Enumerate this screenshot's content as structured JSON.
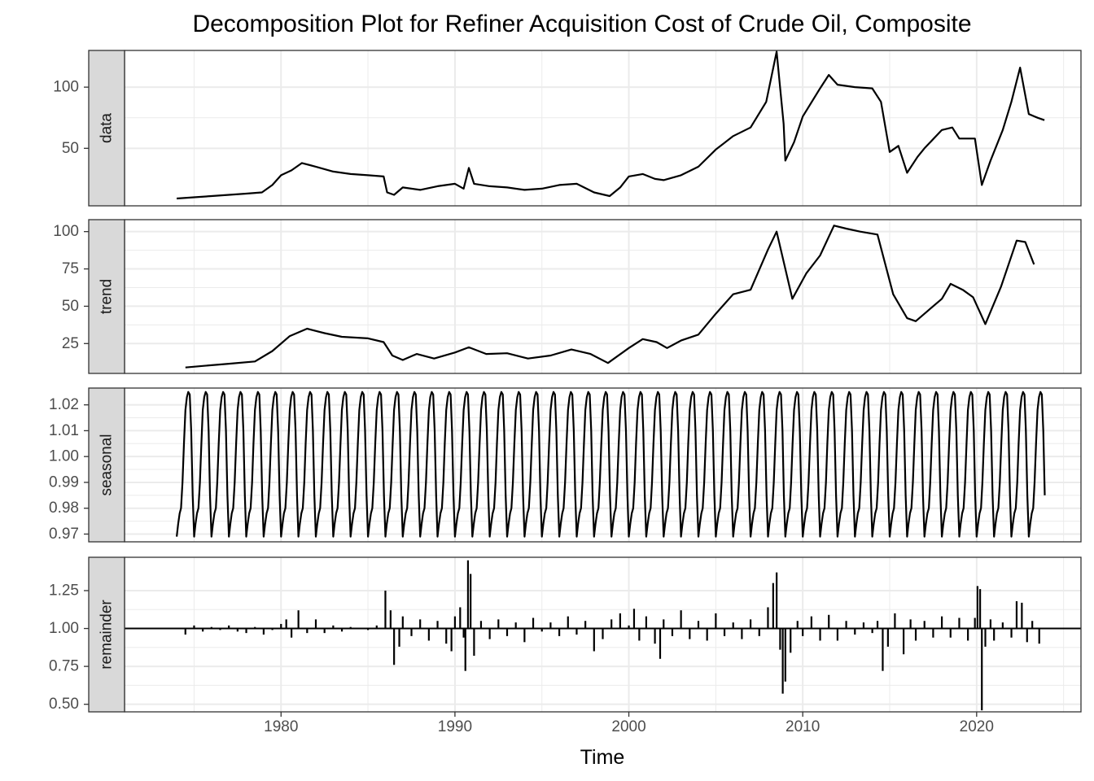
{
  "chart_data": {
    "type": "line",
    "title": "Decomposition Plot for Refiner Acquisition Cost of Crude Oil, Composite",
    "xlabel": "Time",
    "x_range": [
      1971,
      2026
    ],
    "x_ticks": [
      1980,
      1990,
      2000,
      2010,
      2020
    ],
    "grid": true,
    "legend": "none",
    "colors": {
      "line": "#000000",
      "strip_fill": "#d9d9d9",
      "grid": "#ebebeb",
      "panel_border": "#333333"
    },
    "panels": [
      {
        "label": "data",
        "kind": "line",
        "ylim": [
          3,
          130
        ],
        "y_ticks": [
          50,
          100
        ],
        "y_tick_labels": [
          "50",
          "100"
        ],
        "points": [
          [
            1974.0,
            9
          ],
          [
            1975.0,
            10
          ],
          [
            1976.0,
            11
          ],
          [
            1977.0,
            12
          ],
          [
            1978.0,
            13
          ],
          [
            1978.9,
            14
          ],
          [
            1979.5,
            20
          ],
          [
            1980.0,
            28
          ],
          [
            1980.6,
            32
          ],
          [
            1981.2,
            38
          ],
          [
            1982.0,
            35
          ],
          [
            1983.0,
            31
          ],
          [
            1984.0,
            29
          ],
          [
            1985.0,
            28
          ],
          [
            1985.9,
            27
          ],
          [
            1986.1,
            14
          ],
          [
            1986.5,
            12
          ],
          [
            1987.0,
            18
          ],
          [
            1988.0,
            16
          ],
          [
            1989.0,
            19
          ],
          [
            1990.0,
            21
          ],
          [
            1990.5,
            17
          ],
          [
            1990.8,
            34
          ],
          [
            1991.1,
            21
          ],
          [
            1992.0,
            19
          ],
          [
            1993.0,
            18
          ],
          [
            1994.0,
            16
          ],
          [
            1995.0,
            17
          ],
          [
            1996.0,
            20
          ],
          [
            1997.0,
            21
          ],
          [
            1998.0,
            14
          ],
          [
            1998.9,
            11
          ],
          [
            1999.5,
            18
          ],
          [
            2000.0,
            27
          ],
          [
            2000.8,
            29
          ],
          [
            2001.5,
            25
          ],
          [
            2002.0,
            24
          ],
          [
            2003.0,
            28
          ],
          [
            2004.0,
            35
          ],
          [
            2005.0,
            49
          ],
          [
            2006.0,
            60
          ],
          [
            2007.0,
            67
          ],
          [
            2007.9,
            88
          ],
          [
            2008.5,
            129
          ],
          [
            2008.9,
            70
          ],
          [
            2009.0,
            40
          ],
          [
            2009.5,
            55
          ],
          [
            2010.0,
            76
          ],
          [
            2011.0,
            99
          ],
          [
            2011.5,
            110
          ],
          [
            2012.0,
            102
          ],
          [
            2013.0,
            100
          ],
          [
            2014.0,
            99
          ],
          [
            2014.5,
            88
          ],
          [
            2015.0,
            47
          ],
          [
            2015.5,
            52
          ],
          [
            2016.0,
            30
          ],
          [
            2016.6,
            43
          ],
          [
            2017.0,
            50
          ],
          [
            2018.0,
            65
          ],
          [
            2018.6,
            67
          ],
          [
            2019.0,
            58
          ],
          [
            2019.9,
            58
          ],
          [
            2020.3,
            20
          ],
          [
            2020.8,
            40
          ],
          [
            2021.5,
            65
          ],
          [
            2022.0,
            88
          ],
          [
            2022.5,
            116
          ],
          [
            2023.0,
            78
          ],
          [
            2023.5,
            75
          ],
          [
            2023.9,
            73
          ]
        ]
      },
      {
        "label": "trend",
        "kind": "line",
        "ylim": [
          5,
          108
        ],
        "y_ticks": [
          25,
          50,
          75,
          100
        ],
        "y_tick_labels": [
          "25",
          "50",
          "75",
          "100"
        ],
        "points": [
          [
            1974.5,
            9
          ],
          [
            1975.5,
            10
          ],
          [
            1977.0,
            11.5
          ],
          [
            1978.5,
            13
          ],
          [
            1979.5,
            20
          ],
          [
            1980.5,
            30
          ],
          [
            1981.5,
            35
          ],
          [
            1982.5,
            32
          ],
          [
            1983.5,
            29.5
          ],
          [
            1985.0,
            28.5
          ],
          [
            1985.9,
            26
          ],
          [
            1986.4,
            17
          ],
          [
            1987.0,
            14
          ],
          [
            1987.8,
            18
          ],
          [
            1988.8,
            15
          ],
          [
            1990.0,
            19
          ],
          [
            1990.8,
            22.5
          ],
          [
            1991.8,
            18
          ],
          [
            1993.0,
            18.5
          ],
          [
            1994.2,
            15
          ],
          [
            1995.5,
            17
          ],
          [
            1996.7,
            21
          ],
          [
            1997.8,
            18
          ],
          [
            1998.8,
            12
          ],
          [
            2000.0,
            22
          ],
          [
            2000.8,
            28
          ],
          [
            2001.6,
            26
          ],
          [
            2002.2,
            22
          ],
          [
            2003.0,
            27
          ],
          [
            2004.0,
            31
          ],
          [
            2005.0,
            45
          ],
          [
            2006.0,
            58
          ],
          [
            2007.0,
            61
          ],
          [
            2008.0,
            88
          ],
          [
            2008.5,
            100
          ],
          [
            2009.4,
            55
          ],
          [
            2010.2,
            72
          ],
          [
            2011.0,
            84
          ],
          [
            2011.8,
            104
          ],
          [
            2012.5,
            102
          ],
          [
            2013.3,
            100
          ],
          [
            2014.3,
            98
          ],
          [
            2015.2,
            58
          ],
          [
            2016.0,
            42
          ],
          [
            2016.5,
            40
          ],
          [
            2017.2,
            47
          ],
          [
            2018.0,
            55
          ],
          [
            2018.5,
            65
          ],
          [
            2019.2,
            61
          ],
          [
            2019.8,
            56
          ],
          [
            2020.5,
            38
          ],
          [
            2021.4,
            63
          ],
          [
            2022.3,
            94
          ],
          [
            2022.8,
            93
          ],
          [
            2023.3,
            78
          ]
        ]
      },
      {
        "label": "seasonal",
        "kind": "seasonal",
        "ylim": [
          0.967,
          1.0265
        ],
        "y_ticks": [
          0.97,
          0.98,
          0.99,
          1.0,
          1.01,
          1.02
        ],
        "y_tick_labels": [
          "0.97",
          "0.98",
          "0.99",
          "1.00",
          "1.01",
          "1.02"
        ],
        "start": 1974.0,
        "end": 2023.9,
        "pattern": [
          0.969,
          0.974,
          0.978,
          0.98,
          0.99,
          1.005,
          1.018,
          1.023,
          1.025,
          1.024,
          1.01,
          0.985
        ]
      },
      {
        "label": "remainder",
        "kind": "bars",
        "baseline": 1.0,
        "ylim": [
          0.45,
          1.47
        ],
        "y_ticks": [
          0.5,
          0.75,
          1.0,
          1.25
        ],
        "y_tick_labels": [
          "0.50",
          "0.75",
          "1.00",
          "1.25"
        ],
        "bars": [
          [
            1974.5,
            0.96
          ],
          [
            1975.0,
            1.02
          ],
          [
            1975.5,
            0.98
          ],
          [
            1976.0,
            1.01
          ],
          [
            1976.5,
            0.99
          ],
          [
            1977.0,
            1.02
          ],
          [
            1977.5,
            0.98
          ],
          [
            1978.0,
            0.97
          ],
          [
            1978.5,
            1.01
          ],
          [
            1979.0,
            0.96
          ],
          [
            1979.5,
            0.99
          ],
          [
            1980.0,
            1.03
          ],
          [
            1980.3,
            1.06
          ],
          [
            1980.6,
            0.94
          ],
          [
            1981.0,
            1.12
          ],
          [
            1981.5,
            0.97
          ],
          [
            1982.0,
            1.06
          ],
          [
            1982.5,
            0.97
          ],
          [
            1983.0,
            1.02
          ],
          [
            1983.5,
            0.98
          ],
          [
            1984.0,
            1.01
          ],
          [
            1984.5,
            1.0
          ],
          [
            1985.0,
            0.99
          ],
          [
            1985.5,
            1.02
          ],
          [
            1986.0,
            1.25
          ],
          [
            1986.3,
            1.12
          ],
          [
            1986.5,
            0.76
          ],
          [
            1986.8,
            0.88
          ],
          [
            1987.0,
            1.08
          ],
          [
            1987.5,
            0.95
          ],
          [
            1988.0,
            1.06
          ],
          [
            1988.5,
            0.92
          ],
          [
            1989.0,
            1.05
          ],
          [
            1989.5,
            0.9
          ],
          [
            1989.8,
            0.85
          ],
          [
            1990.0,
            1.08
          ],
          [
            1990.3,
            1.14
          ],
          [
            1990.5,
            0.94
          ],
          [
            1990.6,
            0.72
          ],
          [
            1990.75,
            1.45
          ],
          [
            1990.9,
            1.36
          ],
          [
            1991.1,
            0.82
          ],
          [
            1991.5,
            1.05
          ],
          [
            1992.0,
            0.93
          ],
          [
            1992.5,
            1.06
          ],
          [
            1993.0,
            0.95
          ],
          [
            1993.5,
            1.04
          ],
          [
            1994.0,
            0.91
          ],
          [
            1994.5,
            1.07
          ],
          [
            1995.0,
            0.98
          ],
          [
            1995.5,
            1.04
          ],
          [
            1996.0,
            0.95
          ],
          [
            1996.5,
            1.08
          ],
          [
            1997.0,
            0.96
          ],
          [
            1997.5,
            1.05
          ],
          [
            1998.0,
            0.85
          ],
          [
            1998.5,
            0.93
          ],
          [
            1999.0,
            1.06
          ],
          [
            1999.5,
            1.1
          ],
          [
            2000.0,
            1.02
          ],
          [
            2000.3,
            1.13
          ],
          [
            2000.6,
            0.92
          ],
          [
            2001.0,
            1.08
          ],
          [
            2001.5,
            0.9
          ],
          [
            2001.8,
            0.8
          ],
          [
            2002.0,
            1.06
          ],
          [
            2002.5,
            0.95
          ],
          [
            2003.0,
            1.12
          ],
          [
            2003.5,
            0.93
          ],
          [
            2004.0,
            1.05
          ],
          [
            2004.5,
            0.92
          ],
          [
            2005.0,
            1.1
          ],
          [
            2005.5,
            0.95
          ],
          [
            2006.0,
            1.04
          ],
          [
            2006.5,
            0.93
          ],
          [
            2007.0,
            1.06
          ],
          [
            2007.5,
            0.95
          ],
          [
            2008.0,
            1.14
          ],
          [
            2008.3,
            1.3
          ],
          [
            2008.5,
            1.37
          ],
          [
            2008.7,
            0.86
          ],
          [
            2008.85,
            0.57
          ],
          [
            2009.0,
            0.65
          ],
          [
            2009.3,
            0.84
          ],
          [
            2009.7,
            1.05
          ],
          [
            2010.0,
            0.95
          ],
          [
            2010.5,
            1.08
          ],
          [
            2011.0,
            0.92
          ],
          [
            2011.5,
            1.09
          ],
          [
            2012.0,
            0.92
          ],
          [
            2012.5,
            1.05
          ],
          [
            2013.0,
            0.96
          ],
          [
            2013.5,
            1.04
          ],
          [
            2014.0,
            0.97
          ],
          [
            2014.3,
            1.05
          ],
          [
            2014.6,
            0.72
          ],
          [
            2014.9,
            0.88
          ],
          [
            2015.3,
            1.1
          ],
          [
            2015.8,
            0.83
          ],
          [
            2016.2,
            1.06
          ],
          [
            2016.5,
            0.92
          ],
          [
            2017.0,
            1.05
          ],
          [
            2017.5,
            0.94
          ],
          [
            2018.0,
            1.08
          ],
          [
            2018.5,
            0.94
          ],
          [
            2019.0,
            1.07
          ],
          [
            2019.5,
            0.92
          ],
          [
            2019.9,
            1.07
          ],
          [
            2020.05,
            1.28
          ],
          [
            2020.2,
            1.26
          ],
          [
            2020.3,
            0.46
          ],
          [
            2020.5,
            0.88
          ],
          [
            2020.8,
            1.06
          ],
          [
            2021.0,
            0.92
          ],
          [
            2021.5,
            1.04
          ],
          [
            2022.0,
            0.94
          ],
          [
            2022.3,
            1.18
          ],
          [
            2022.6,
            1.17
          ],
          [
            2022.9,
            0.91
          ],
          [
            2023.2,
            1.05
          ],
          [
            2023.6,
            0.9
          ]
        ]
      }
    ]
  }
}
